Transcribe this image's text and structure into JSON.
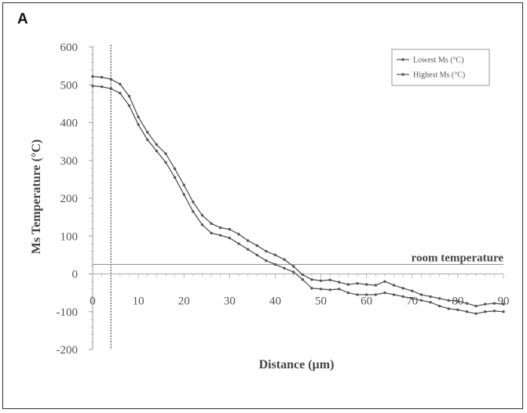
{
  "panel_label": "A",
  "chart_data": {
    "type": "line",
    "title": "",
    "xlabel": "Distance (µm)",
    "ylabel": "Ms Temperature (°C)",
    "xlim": [
      0,
      90
    ],
    "ylim": [
      -200,
      600
    ],
    "xticks": [
      0,
      10,
      20,
      30,
      40,
      50,
      60,
      70,
      80,
      90
    ],
    "xtick_labels": [
      "0",
      "10",
      "20",
      "30",
      "40",
      "50",
      "60",
      "70",
      "80",
      "90"
    ],
    "yticks": [
      600,
      500,
      400,
      300,
      200,
      100,
      0,
      -100,
      -200
    ],
    "ytick_labels": [
      "600",
      "500",
      "400",
      "300",
      "200",
      "100",
      "0",
      "-100",
      "-200"
    ],
    "grid": false,
    "legend_position": "top-right",
    "x": [
      0,
      2,
      4,
      6,
      8,
      10,
      12,
      14,
      16,
      18,
      20,
      22,
      24,
      26,
      28,
      30,
      32,
      34,
      36,
      38,
      40,
      42,
      44,
      46,
      48,
      50,
      52,
      54,
      56,
      58,
      60,
      62,
      64,
      66,
      68,
      70,
      72,
      74,
      76,
      78,
      80,
      82,
      84,
      86,
      88,
      90
    ],
    "series": [
      {
        "name": "Lowest Ms (°C)",
        "values": [
          497,
          495,
          490,
          478,
          445,
          395,
          355,
          325,
          295,
          255,
          210,
          165,
          130,
          108,
          102,
          95,
          80,
          65,
          50,
          35,
          25,
          15,
          5,
          -15,
          -38,
          -40,
          -42,
          -40,
          -50,
          -55,
          -55,
          -55,
          -50,
          -55,
          -60,
          -65,
          -70,
          -75,
          -85,
          -92,
          -95,
          -100,
          -105,
          -100,
          -98,
          -100
        ],
        "color": "#555555"
      },
      {
        "name": "Highest Ms (°C)",
        "values": [
          522,
          520,
          515,
          502,
          470,
          415,
          375,
          342,
          318,
          278,
          235,
          190,
          155,
          133,
          122,
          118,
          105,
          88,
          75,
          60,
          50,
          38,
          20,
          -2,
          -15,
          -18,
          -16,
          -22,
          -28,
          -25,
          -28,
          -30,
          -20,
          -30,
          -38,
          -45,
          -55,
          -60,
          -65,
          -70,
          -72,
          -78,
          -85,
          -80,
          -78,
          -80
        ],
        "color": "#555555"
      }
    ],
    "reference_lines": {
      "vertical_x": 4,
      "horizontal_y": 25,
      "horizontal_label": "room temperature"
    }
  }
}
